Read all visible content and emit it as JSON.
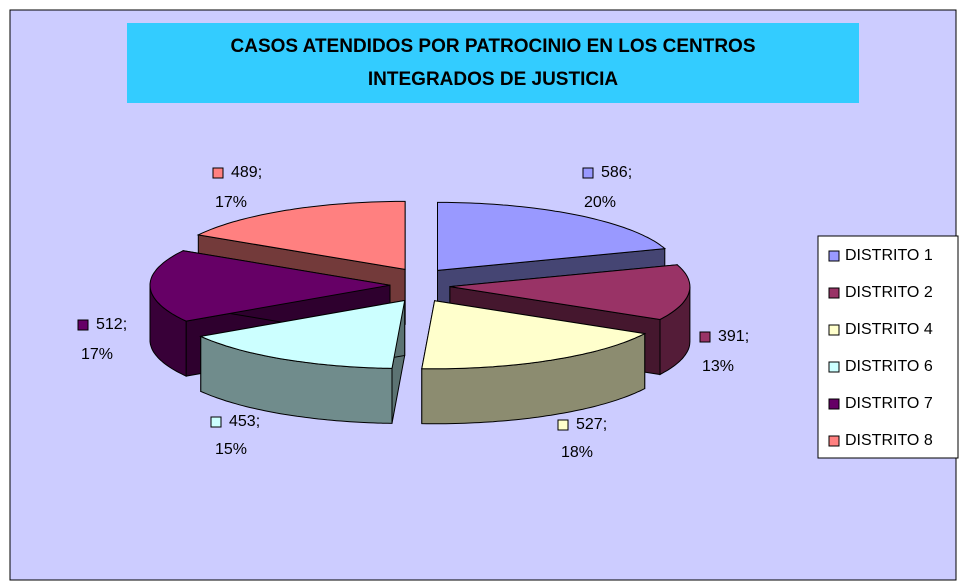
{
  "chart_data": {
    "type": "pie3d",
    "title": [
      "CASOS ATENDIDOS POR PATROCINIO EN LOS CENTROS",
      "INTEGRADOS DE JUSTICIA"
    ],
    "categories": [
      "DISTRITO 1",
      "DISTRITO 2",
      "DISTRITO 4",
      "DISTRITO 6",
      "DISTRITO 7",
      "DISTRITO 8"
    ],
    "values": [
      586,
      391,
      527,
      453,
      512,
      489
    ],
    "value_labels": [
      "586;",
      "391;",
      "527;",
      "453;",
      "512;",
      "489;"
    ],
    "percents": [
      20,
      13,
      18,
      15,
      17,
      17
    ],
    "percent_labels": [
      "20%",
      "13%",
      "18%",
      "15%",
      "17%",
      "17%"
    ],
    "colors": [
      "#9999ff",
      "#993366",
      "#ffffcc",
      "#ccffff",
      "#660066",
      "#ff8080"
    ],
    "legend": "right"
  }
}
